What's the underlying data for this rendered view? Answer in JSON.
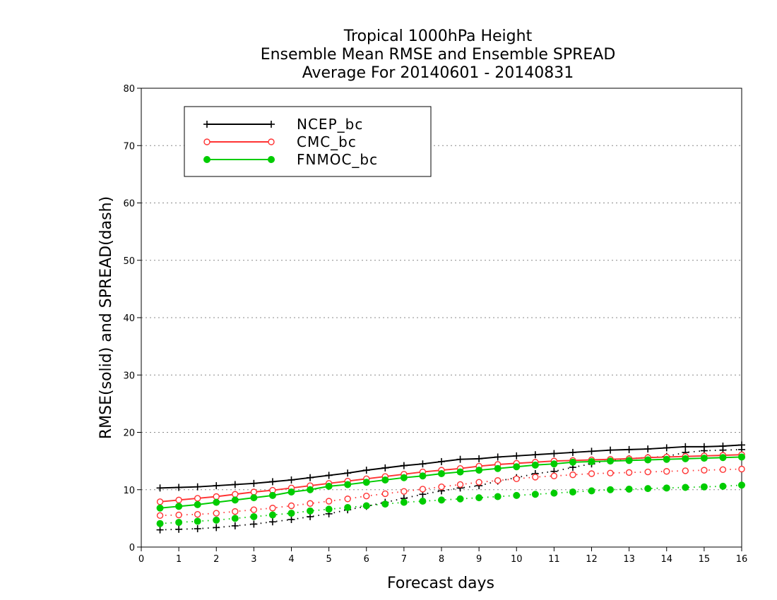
{
  "chart_data": {
    "type": "line",
    "title": [
      "Tropical 1000hPa Height",
      "Ensemble Mean RMSE and Ensemble SPREAD",
      "Average For 20140601 - 20140831"
    ],
    "xlabel": "Forecast days",
    "ylabel": "RMSE(solid) and SPREAD(dash)",
    "xlim": [
      0,
      16
    ],
    "ylim": [
      0,
      80
    ],
    "xticks": [
      "0",
      "1",
      "2",
      "3",
      "4",
      "5",
      "6",
      "7",
      "8",
      "9",
      "10",
      "11",
      "12",
      "13",
      "14",
      "15",
      "16"
    ],
    "yticks": [
      "0",
      "10",
      "20",
      "30",
      "40",
      "50",
      "60",
      "70",
      "80"
    ],
    "grid": "horizontal-dotted",
    "legend_position": "top-left",
    "x": [
      0.5,
      1,
      1.5,
      2,
      2.5,
      3,
      3.5,
      4,
      4.5,
      5,
      5.5,
      6,
      6.5,
      7,
      7.5,
      8,
      8.5,
      9,
      9.5,
      10,
      10.5,
      11,
      11.5,
      12,
      12.5,
      13,
      13.5,
      14,
      14.5,
      15,
      15.5,
      16
    ],
    "series": [
      {
        "name": "NCEP_bc",
        "color": "#000000",
        "marker": "plus",
        "rmse": [
          10.3,
          10.4,
          10.5,
          10.7,
          10.9,
          11.1,
          11.4,
          11.7,
          12.1,
          12.5,
          12.9,
          13.4,
          13.8,
          14.2,
          14.5,
          14.9,
          15.3,
          15.4,
          15.7,
          15.9,
          16.1,
          16.3,
          16.5,
          16.7,
          16.9,
          17.0,
          17.1,
          17.3,
          17.5,
          17.5,
          17.6,
          17.8
        ],
        "spread": [
          3.0,
          3.1,
          3.2,
          3.4,
          3.7,
          4.0,
          4.4,
          4.8,
          5.3,
          5.8,
          6.5,
          7.1,
          7.8,
          8.5,
          9.2,
          9.8,
          10.3,
          10.7,
          11.5,
          12.1,
          12.8,
          13.2,
          13.9,
          14.5,
          15.2,
          15.4,
          15.6,
          15.8,
          16.5,
          16.8,
          16.9,
          17.0
        ]
      },
      {
        "name": "CMC_bc",
        "color": "#ff3333",
        "marker": "open-circle",
        "rmse": [
          7.9,
          8.2,
          8.5,
          8.8,
          9.2,
          9.6,
          9.9,
          10.3,
          10.7,
          11.1,
          11.5,
          11.9,
          12.3,
          12.7,
          13.1,
          13.4,
          13.7,
          14.1,
          14.4,
          14.6,
          14.8,
          15.0,
          15.1,
          15.2,
          15.3,
          15.4,
          15.6,
          15.7,
          15.8,
          15.9,
          16.0,
          16.1
        ],
        "spread": [
          5.5,
          5.6,
          5.7,
          5.9,
          6.2,
          6.5,
          6.8,
          7.2,
          7.6,
          8.0,
          8.4,
          8.9,
          9.3,
          9.7,
          10.1,
          10.5,
          10.9,
          11.3,
          11.6,
          11.9,
          12.2,
          12.4,
          12.6,
          12.8,
          12.9,
          13.0,
          13.1,
          13.2,
          13.3,
          13.4,
          13.5,
          13.6
        ]
      },
      {
        "name": "FNMOC_bc",
        "color": "#00cc00",
        "marker": "filled-circle",
        "rmse": [
          6.8,
          7.1,
          7.4,
          7.8,
          8.2,
          8.6,
          9.0,
          9.6,
          10.0,
          10.6,
          10.9,
          11.3,
          11.7,
          12.1,
          12.4,
          12.8,
          13.1,
          13.4,
          13.7,
          14.0,
          14.3,
          14.5,
          14.8,
          14.9,
          15.0,
          15.1,
          15.2,
          15.3,
          15.4,
          15.5,
          15.6,
          15.7
        ],
        "spread": [
          4.1,
          4.3,
          4.5,
          4.7,
          5.0,
          5.3,
          5.6,
          5.9,
          6.3,
          6.6,
          6.9,
          7.2,
          7.5,
          7.8,
          8.0,
          8.2,
          8.4,
          8.6,
          8.8,
          9.0,
          9.2,
          9.4,
          9.6,
          9.8,
          10.0,
          10.1,
          10.2,
          10.3,
          10.4,
          10.5,
          10.6,
          10.8
        ]
      }
    ]
  }
}
